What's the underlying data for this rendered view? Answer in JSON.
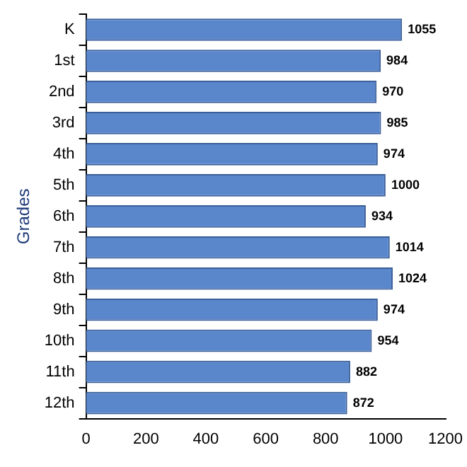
{
  "chart_data": {
    "type": "bar",
    "orientation": "horizontal",
    "ylabel": "Grades",
    "categories": [
      "K",
      "1st",
      "2nd",
      "3rd",
      "4th",
      "5th",
      "6th",
      "7th",
      "8th",
      "9th",
      "10th",
      "11th",
      "12th"
    ],
    "values": [
      1055,
      984,
      970,
      985,
      974,
      1000,
      934,
      1014,
      1024,
      974,
      954,
      882,
      872
    ],
    "color": "#5a86cc",
    "xlim": [
      0,
      1200
    ],
    "xticks": [
      0,
      200,
      400,
      600,
      800,
      1000,
      1200
    ],
    "grid": false,
    "legend": false,
    "data_labels": true
  }
}
